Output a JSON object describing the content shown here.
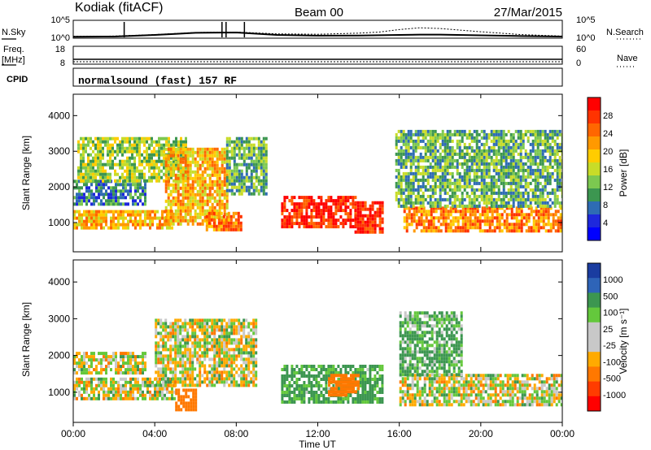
{
  "header": {
    "station": "Kodiak (fitACF)",
    "beam": "Beam 00",
    "date": "27/Mar/2015"
  },
  "left_labels": {
    "nsky": "N.Sky",
    "freq_line1": "Freq.",
    "freq_line2": "[MHz]",
    "cpid": "CPID"
  },
  "right_labels": {
    "nsearch": "N.Search",
    "nave": "Nave"
  },
  "program_text": "normalsound (fast) 157 RF",
  "x_axis": {
    "title": "Time UT",
    "ticks": [
      "00:00",
      "04:00",
      "08:00",
      "12:00",
      "16:00",
      "20:00",
      "00:00"
    ],
    "tick_hours": [
      0,
      4,
      8,
      12,
      16,
      20,
      24
    ]
  },
  "chart_data": [
    {
      "type": "line",
      "name": "noise",
      "left_axis_label": "N.Sky",
      "right_axis_label": "N.Search",
      "left_ticks": [
        "10^5",
        "10^0"
      ],
      "right_ticks": [
        "10^5",
        "10^0"
      ],
      "ylim": [
        0,
        5
      ],
      "series": [
        {
          "name": "N.Sky",
          "style": "solid",
          "x_hours": [
            0,
            2,
            4,
            5,
            6,
            8,
            10,
            12,
            14,
            16,
            17,
            18,
            20,
            22,
            24
          ],
          "values": [
            0.4,
            0.45,
            0.9,
            1.2,
            1.5,
            1.6,
            0.9,
            0.7,
            0.75,
            0.9,
            1.0,
            1.0,
            0.8,
            0.6,
            0.45
          ]
        },
        {
          "name": "N.Search",
          "style": "dotted",
          "x_hours": [
            0,
            2,
            4,
            6,
            8,
            10,
            12,
            14,
            15,
            16,
            17,
            18,
            20,
            22,
            24
          ],
          "values": [
            0.5,
            0.6,
            1.0,
            1.6,
            1.7,
            1.2,
            1.1,
            1.4,
            1.7,
            2.4,
            2.9,
            2.7,
            1.8,
            1.0,
            0.6
          ]
        }
      ],
      "spikes_hours": [
        2.5,
        7.3,
        7.5,
        8.4
      ]
    },
    {
      "type": "line",
      "name": "frequency",
      "left_axis_label": "Freq. [MHz]",
      "right_axis_label": "Nave",
      "left_ticks": [
        "18",
        "8"
      ],
      "right_ticks": [
        "60",
        "0"
      ],
      "series": [
        {
          "name": "Freq.",
          "x_hours": [
            0,
            24
          ],
          "values": [
            10.2,
            10.2
          ]
        },
        {
          "name": "Nave",
          "style": "dotted",
          "x_hours": [
            0,
            24
          ],
          "values": [
            9,
            9
          ]
        }
      ]
    },
    {
      "type": "heatmap",
      "name": "power",
      "ylabel": "Slant Range [km]",
      "yticks": [
        1000,
        2000,
        3000,
        4000
      ],
      "ylim": [
        180,
        4600
      ],
      "xlim": [
        0,
        24
      ],
      "colorbar": {
        "label": "Power [dB]",
        "ticks": [
          "28",
          "24",
          "20",
          "16",
          "12",
          "8",
          "4"
        ],
        "colors": [
          "#ff0000",
          "#ff3300",
          "#ff6600",
          "#ff9900",
          "#ffcc00",
          "#c8dc28",
          "#7cc850",
          "#3c9650",
          "#2e6cb4",
          "#1e28dc",
          "#0000ff"
        ]
      },
      "regions": [
        {
          "t": [
            0,
            4.8
          ],
          "r": [
            850,
            1350
          ],
          "level": 20
        },
        {
          "t": [
            0,
            3.5
          ],
          "r": [
            1500,
            2200
          ],
          "level": 8
        },
        {
          "t": [
            0.2,
            5.5
          ],
          "r": [
            2200,
            3400
          ],
          "level": 12
        },
        {
          "t": [
            4.5,
            7.5
          ],
          "r": [
            1000,
            3100
          ],
          "level": 18
        },
        {
          "t": [
            7.5,
            9.5
          ],
          "r": [
            1800,
            3400
          ],
          "level": 10
        },
        {
          "t": [
            6.5,
            8.2
          ],
          "r": [
            800,
            1300
          ],
          "level": 22
        },
        {
          "t": [
            10.2,
            13.8
          ],
          "r": [
            850,
            1750
          ],
          "level": 28
        },
        {
          "t": [
            13.8,
            15.2
          ],
          "r": [
            700,
            1600
          ],
          "level": 28
        },
        {
          "t": [
            16.2,
            24
          ],
          "r": [
            750,
            1450
          ],
          "level": 22
        },
        {
          "t": [
            15.8,
            24
          ],
          "r": [
            1500,
            3600
          ],
          "level": 10
        }
      ]
    },
    {
      "type": "heatmap",
      "name": "velocity",
      "ylabel": "Slant Range [km]",
      "yticks": [
        1000,
        2000,
        3000,
        4000
      ],
      "ylim": [
        180,
        4600
      ],
      "xlim": [
        0,
        24
      ],
      "colorbar": {
        "label": "Velocity [m s⁻¹]",
        "ticks": [
          "1000",
          "500",
          "100",
          "25",
          "-25",
          "-100",
          "-500",
          "-1000"
        ],
        "colors": [
          "#1a3ca0",
          "#2e64b8",
          "#3c9650",
          "#64c83c",
          "#c8c8c8",
          "#c8c8c8",
          "#ffaa00",
          "#ff7800",
          "#ff3c00",
          "#ff0000"
        ]
      },
      "regions": [
        {
          "t": [
            0,
            5.0
          ],
          "r": [
            800,
            1400
          ],
          "vel": 0
        },
        {
          "t": [
            0,
            3.5
          ],
          "r": [
            1500,
            2100
          ],
          "vel": 0
        },
        {
          "t": [
            4.0,
            9.0
          ],
          "r": [
            1200,
            3000
          ],
          "vel": 0
        },
        {
          "t": [
            5.0,
            6.0
          ],
          "r": [
            500,
            1100
          ],
          "vel": -300
        },
        {
          "t": [
            10.2,
            15.2
          ],
          "r": [
            700,
            1750
          ],
          "vel": 150
        },
        {
          "t": [
            12.5,
            14.0
          ],
          "r": [
            900,
            1500
          ],
          "vel": -300
        },
        {
          "t": [
            16.0,
            24
          ],
          "r": [
            700,
            1500
          ],
          "vel": 0
        },
        {
          "t": [
            16.0,
            19.0
          ],
          "r": [
            1500,
            3200
          ],
          "vel": 120
        }
      ]
    }
  ]
}
